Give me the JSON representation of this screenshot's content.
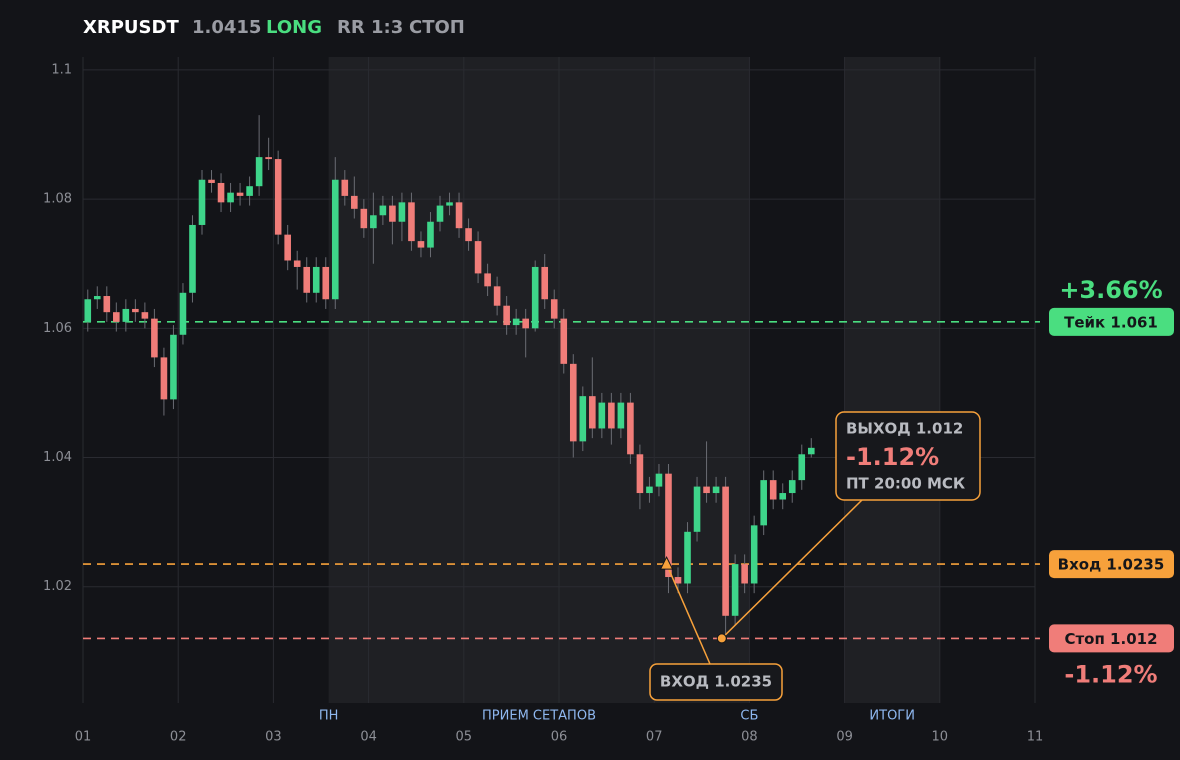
{
  "header": {
    "symbol": "XRPUSDT",
    "price": "1.0415",
    "side": "LONG",
    "rr": "RR 1:3",
    "stop": "СТОП"
  },
  "chart_data": {
    "type": "candlestick",
    "x": [
      1.05,
      1.15,
      1.25,
      1.35,
      1.45,
      1.55,
      1.65,
      1.75,
      1.85,
      1.95,
      2.05,
      2.15,
      2.25,
      2.35,
      2.45,
      2.55,
      2.65,
      2.75,
      2.85,
      2.95,
      3.05,
      3.15,
      3.25,
      3.35,
      3.45,
      3.55,
      3.65,
      3.75,
      3.85,
      3.95,
      4.05,
      4.15,
      4.25,
      4.35,
      4.45,
      4.55,
      4.65,
      4.75,
      4.85,
      4.95,
      5.05,
      5.15,
      5.25,
      5.35,
      5.45,
      5.55,
      5.65,
      5.75,
      5.85,
      5.95,
      6.05,
      6.15,
      6.25,
      6.35,
      6.45,
      6.55,
      6.65,
      6.75,
      6.85,
      6.95,
      7.05,
      7.15,
      7.25,
      7.35,
      7.45,
      7.55,
      7.65,
      7.75,
      7.85,
      7.95,
      8.05,
      8.15,
      8.25,
      8.35,
      8.45,
      8.55,
      8.65
    ],
    "open": [
      1.061,
      1.0645,
      1.065,
      1.0625,
      1.061,
      1.063,
      1.0625,
      1.0615,
      1.0555,
      1.049,
      1.059,
      1.0655,
      1.076,
      1.083,
      1.0825,
      1.0795,
      1.081,
      1.0805,
      1.082,
      1.0865,
      1.0862,
      1.0745,
      1.0705,
      1.0695,
      1.0655,
      1.0695,
      1.0645,
      1.083,
      1.0805,
      1.0785,
      1.0755,
      1.0775,
      1.079,
      1.0765,
      1.0795,
      1.0735,
      1.0725,
      1.0765,
      1.079,
      1.0795,
      1.0755,
      1.0735,
      1.0685,
      1.0665,
      1.0635,
      1.0605,
      1.0615,
      1.06,
      1.0695,
      1.0645,
      1.0615,
      1.0545,
      1.0425,
      1.0495,
      1.0445,
      1.0485,
      1.0445,
      1.0485,
      1.0405,
      1.0345,
      1.0355,
      1.0375,
      1.0215,
      1.0205,
      1.0285,
      1.0355,
      1.0345,
      1.0355,
      1.0155,
      1.0235,
      1.0205,
      1.0295,
      1.0365,
      1.0335,
      1.0345,
      1.0365,
      1.0405
    ],
    "high": [
      1.066,
      1.0665,
      1.0665,
      1.064,
      1.0645,
      1.0645,
      1.064,
      1.063,
      1.057,
      1.0605,
      1.067,
      1.0775,
      1.0845,
      1.0845,
      1.084,
      1.0825,
      1.0825,
      1.0835,
      1.093,
      1.0895,
      1.0875,
      1.076,
      1.072,
      1.071,
      1.071,
      1.071,
      1.0865,
      1.0845,
      1.0835,
      1.08,
      1.081,
      1.0805,
      1.0805,
      1.081,
      1.081,
      1.075,
      1.078,
      1.0805,
      1.081,
      1.081,
      1.077,
      1.075,
      1.07,
      1.068,
      1.065,
      1.063,
      1.063,
      1.0705,
      1.0715,
      1.066,
      1.063,
      1.056,
      1.051,
      1.0555,
      1.05,
      1.05,
      1.05,
      1.05,
      1.042,
      1.037,
      1.039,
      1.039,
      1.023,
      1.03,
      1.037,
      1.0425,
      1.037,
      1.037,
      1.025,
      1.025,
      1.031,
      1.038,
      1.038,
      1.036,
      1.038,
      1.042,
      1.043
    ],
    "low": [
      1.0595,
      1.063,
      1.061,
      1.0595,
      1.0595,
      1.061,
      1.06,
      1.054,
      1.0465,
      1.0475,
      1.0575,
      1.064,
      1.0745,
      1.081,
      1.078,
      1.078,
      1.079,
      1.079,
      1.0805,
      1.0845,
      1.073,
      1.069,
      1.066,
      1.064,
      1.064,
      1.063,
      1.063,
      1.079,
      1.077,
      1.074,
      1.07,
      1.076,
      1.073,
      1.0735,
      1.072,
      1.071,
      1.071,
      1.075,
      1.0775,
      1.074,
      1.072,
      1.067,
      1.065,
      1.062,
      1.059,
      1.059,
      1.0555,
      1.0595,
      1.063,
      1.06,
      1.053,
      1.04,
      1.041,
      1.043,
      1.043,
      1.042,
      1.043,
      1.039,
      1.032,
      1.033,
      1.034,
      1.019,
      1.019,
      1.019,
      1.027,
      1.033,
      1.033,
      1.0125,
      1.014,
      1.019,
      1.019,
      1.028,
      1.032,
      1.032,
      1.033,
      1.035,
      1.04
    ],
    "close": [
      1.0645,
      1.065,
      1.0625,
      1.061,
      1.063,
      1.0625,
      1.0615,
      1.0555,
      1.049,
      1.059,
      1.0655,
      1.076,
      1.083,
      1.0825,
      1.0795,
      1.081,
      1.0805,
      1.082,
      1.0865,
      1.0862,
      1.0745,
      1.0705,
      1.0695,
      1.0655,
      1.0695,
      1.0645,
      1.083,
      1.0805,
      1.0785,
      1.0755,
      1.0775,
      1.079,
      1.0765,
      1.0795,
      1.0735,
      1.0725,
      1.0765,
      1.079,
      1.0795,
      1.0755,
      1.0735,
      1.0685,
      1.0665,
      1.0635,
      1.0605,
      1.0615,
      1.06,
      1.0695,
      1.0645,
      1.0615,
      1.0545,
      1.0425,
      1.0495,
      1.0445,
      1.0485,
      1.0445,
      1.0485,
      1.0405,
      1.0345,
      1.0355,
      1.0375,
      1.0215,
      1.0205,
      1.0285,
      1.0355,
      1.0345,
      1.0355,
      1.0155,
      1.0235,
      1.0205,
      1.0295,
      1.0365,
      1.0335,
      1.0345,
      1.0365,
      1.0405,
      1.0415
    ],
    "up_color": "#3ed58a",
    "down_color": "#f07d79",
    "xlim": [
      1,
      11
    ],
    "xticks": [
      {
        "value": 1,
        "label": "01"
      },
      {
        "value": 2,
        "label": "02"
      },
      {
        "value": 3,
        "label": "03"
      },
      {
        "value": 4,
        "label": "04"
      },
      {
        "value": 5,
        "label": "05"
      },
      {
        "value": 6,
        "label": "06"
      },
      {
        "value": 7,
        "label": "07"
      },
      {
        "value": 8,
        "label": "08"
      },
      {
        "value": 9,
        "label": "09"
      },
      {
        "value": 10,
        "label": "10"
      },
      {
        "value": 11,
        "label": "11"
      }
    ],
    "ylim": [
      1.002,
      1.102
    ],
    "yticks": [
      1.02,
      1.04,
      1.06,
      1.08,
      1.1
    ],
    "grid": true,
    "bands": [
      [
        3.58,
        8.0
      ],
      [
        9.0,
        10.0
      ]
    ],
    "sessions": [
      {
        "label": "ПН",
        "x": 3.58
      },
      {
        "label": "ПРИЕМ СЕТАПОВ",
        "x": 5.79
      },
      {
        "label": "СБ",
        "x": 8.0
      },
      {
        "label": "ИТОГИ",
        "x": 9.5
      }
    ],
    "levels": [
      {
        "value": 1.061,
        "label": "Тейк 1.061",
        "change": "+3.66%",
        "color": "#4ade80"
      },
      {
        "value": 1.0235,
        "label": "Вход 1.0235",
        "color": "#f7a13b"
      },
      {
        "value": 1.012,
        "label": "Стоп 1.012",
        "change": "-1.12%",
        "color": "#f07d79"
      }
    ],
    "entry": {
      "x": 7.13,
      "price": 1.0235,
      "label": "ВХОД 1.0235"
    },
    "exit": {
      "x": 7.71,
      "price": 1.012,
      "label": "ВЫХОД 1.012",
      "change": "-1.12%",
      "time": "ПТ 20:00 МСК"
    }
  }
}
